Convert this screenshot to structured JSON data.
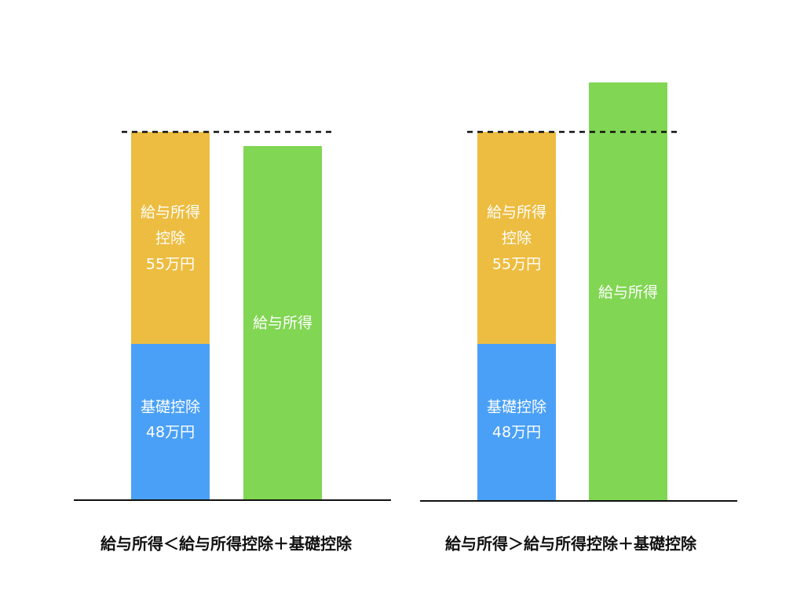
{
  "panels": [
    {
      "salary_deduction": {
        "lines": [
          "給与所得",
          "控除",
          "55万円"
        ]
      },
      "basic_deduction": {
        "lines": [
          "基礎控除",
          "48万円"
        ]
      },
      "salary_income": {
        "label": "給与所得"
      },
      "caption": "給与所得＜給与所得控除＋基礎控除"
    },
    {
      "salary_deduction": {
        "lines": [
          "給与所得",
          "控除",
          "55万円"
        ]
      },
      "basic_deduction": {
        "lines": [
          "基礎控除",
          "48万円"
        ]
      },
      "salary_income": {
        "label": "給与所得"
      },
      "caption": "給与所得＞給与所得控除＋基礎控除"
    }
  ]
}
